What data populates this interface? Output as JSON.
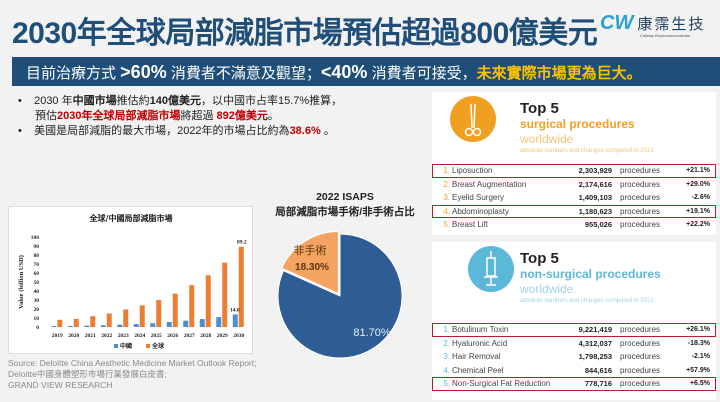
{
  "header": {
    "title": "2030年全球局部減脂市場預估超過800億美元",
    "logo_mark": "CW",
    "logo_name": "康霈生技",
    "logo_sub": "Caliway Biopharmaceuticals"
  },
  "banner": {
    "p1": "目前治療方式 ",
    "v1": ">60%",
    "p2": " 消費者不滿意及觀望；",
    "v2": "<40%",
    "p3": " 消費者可接受，",
    "highlight": "未來實際市場更為巨大。"
  },
  "bullets": [
    {
      "a": "2030 年",
      "b": "中國市場",
      "c": "推估約",
      "d": "140億美元",
      "e": "，以中國市占率15.7%推算，"
    },
    {
      "a": "預估",
      "red": "2030年全球局部減脂市場",
      "c": "將超過 ",
      "red2": "892億美元",
      "e": "。"
    },
    {
      "a": "美國是局部減脂的最大市場，2022年的市場占比約為",
      "red": "38.6%",
      "e": " 。"
    }
  ],
  "chart_data": [
    {
      "type": "bar",
      "title": "全球/中國局部減脂市場",
      "ylabel": "Value (billion USD)",
      "xlabel": "",
      "ylim": [
        0,
        100
      ],
      "yticks": [
        0,
        10,
        20,
        30,
        40,
        50,
        60,
        70,
        80,
        90,
        100
      ],
      "categories": [
        "2019",
        "2020",
        "2021",
        "2022",
        "2023",
        "2024",
        "2025",
        "2026",
        "2027",
        "2028",
        "2029",
        "2030"
      ],
      "series": [
        {
          "name": "中國",
          "color": "#4a8fd4",
          "values": [
            1.0,
            1.2,
            1.6,
            2.0,
            2.6,
            3.3,
            4.2,
            5.5,
            7.0,
            8.8,
            11.0,
            14.0
          ]
        },
        {
          "name": "全球",
          "color": "#ed7d31",
          "values": [
            8,
            9,
            12,
            15,
            19.5,
            24,
            30,
            37,
            46.5,
            57.5,
            71.5,
            89.2
          ]
        }
      ],
      "data_labels": {
        "中國_2030": "14.0",
        "全球_2030": "89.2"
      },
      "legend": "bottom",
      "grid": false
    },
    {
      "type": "pie",
      "title": "2022 ISAPS",
      "subtitle": "局部減脂市場手術/非手術占比",
      "slices": [
        {
          "label": "",
          "value": 81.7,
          "text": "81.70%",
          "color": "#2e5c94"
        },
        {
          "label": "非手術",
          "value": 18.3,
          "text": "18.30%",
          "color": "#f4a460"
        }
      ]
    }
  ],
  "source": [
    "Source: Deloitte China Aesthetic Medicine Market Outlook Report;",
    "Deloitte中國身體塑形市場行業發展白皮書;",
    "GRAND VIEW RESEARCH"
  ],
  "surgical": {
    "title": "Top 5",
    "subtitle": "surgical procedures",
    "sub2": "worldwide",
    "note": "absolute numbers and changes compared to 2021",
    "accent": "#f0a020",
    "rows": [
      {
        "n": "1.",
        "name": "Liposuction",
        "num": "2,303,929",
        "unit": "procedures",
        "chg": "+21.1%",
        "hl": true
      },
      {
        "n": "2.",
        "name": "Breast Augmentation",
        "num": "2,174,616",
        "unit": "procedures",
        "chg": "+29.0%",
        "hl": false
      },
      {
        "n": "3.",
        "name": "Eyelid Surgery",
        "num": "1,409,103",
        "unit": "procedures",
        "chg": "-2.6%",
        "hl": false
      },
      {
        "n": "4.",
        "name": "Abdominoplasty",
        "num": "1,180,623",
        "unit": "procedures",
        "chg": "+19.1%",
        "hl": true
      },
      {
        "n": "5.",
        "name": "Breast Lift",
        "num": "955,026",
        "unit": "procedures",
        "chg": "+22.2%",
        "hl": false
      }
    ]
  },
  "nonsurgical": {
    "title": "Top 5",
    "subtitle": "non-surgical procedures",
    "sub2": "worldwide",
    "note": "absolute numbers and changes compared to 2021",
    "accent": "#5cb8d8",
    "rows": [
      {
        "n": "1.",
        "name": "Botulinum Toxin",
        "num": "9,221,419",
        "unit": "procedures",
        "chg": "+26.1%",
        "hl": true
      },
      {
        "n": "2.",
        "name": "Hyaluronic Acid",
        "num": "4,312,037",
        "unit": "procedures",
        "chg": "-18.3%",
        "hl": false
      },
      {
        "n": "3.",
        "name": "Hair Removal",
        "num": "1,798,253",
        "unit": "procedures",
        "chg": "-2.1%",
        "hl": false
      },
      {
        "n": "4.",
        "name": "Chemical Peel",
        "num": "844,616",
        "unit": "procedures",
        "chg": "+57.9%",
        "hl": false
      },
      {
        "n": "5.",
        "name": "Non-Surgical Fat Reduction",
        "num": "778,716",
        "unit": "procedures",
        "chg": "+6.5%",
        "hl": true
      }
    ]
  }
}
